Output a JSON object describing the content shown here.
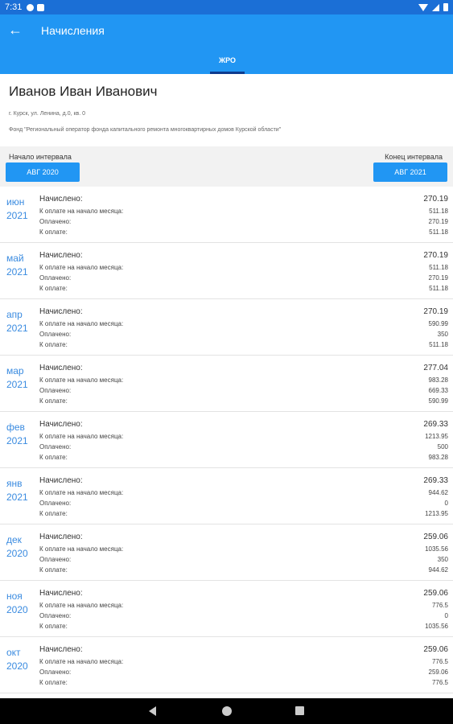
{
  "status_bar": {
    "time": "7:31"
  },
  "appbar": {
    "title": "Начисления",
    "back_icon": "arrow-left-icon",
    "tab_label": "ЖРО"
  },
  "account": {
    "owner": "Иванов Иван Иванович",
    "address": "г. Курск, ул. Ленина, д.0, кв. 0",
    "fund": "Фонд \"Региональный оператор фонда капитального ремонта многоквартирных домов Курской области\""
  },
  "interval": {
    "start_label": "Начало интервала",
    "start_value": "АВГ 2020",
    "end_label": "Конец интервала",
    "end_value": "АВГ 2021"
  },
  "labels": {
    "accrued": "Начислено:",
    "due_start": "К оплате на начало месяца:",
    "paid": "Оплачено:",
    "due": "К оплате:"
  },
  "charges": [
    {
      "month": "июн",
      "year": "2021",
      "accrued": "270.19",
      "due_start": "511.18",
      "paid": "270.19",
      "due": "511.18"
    },
    {
      "month": "май",
      "year": "2021",
      "accrued": "270.19",
      "due_start": "511.18",
      "paid": "270.19",
      "due": "511.18"
    },
    {
      "month": "апр",
      "year": "2021",
      "accrued": "270.19",
      "due_start": "590.99",
      "paid": "350",
      "due": "511.18"
    },
    {
      "month": "мар",
      "year": "2021",
      "accrued": "277.04",
      "due_start": "983.28",
      "paid": "669.33",
      "due": "590.99"
    },
    {
      "month": "фев",
      "year": "2021",
      "accrued": "269.33",
      "due_start": "1213.95",
      "paid": "500",
      "due": "983.28"
    },
    {
      "month": "янв",
      "year": "2021",
      "accrued": "269.33",
      "due_start": "944.62",
      "paid": "0",
      "due": "1213.95"
    },
    {
      "month": "дек",
      "year": "2020",
      "accrued": "259.06",
      "due_start": "1035.56",
      "paid": "350",
      "due": "944.62"
    },
    {
      "month": "ноя",
      "year": "2020",
      "accrued": "259.06",
      "due_start": "776.5",
      "paid": "0",
      "due": "1035.56"
    },
    {
      "month": "окт",
      "year": "2020",
      "accrued": "259.06",
      "due_start": "776.5",
      "paid": "259.06",
      "due": "776.5"
    }
  ],
  "colors": {
    "appbar": "#2196f3",
    "statusbar": "#1b6fd6",
    "month_text": "#3a8be0",
    "tab_indicator": "#0d3b8e"
  }
}
